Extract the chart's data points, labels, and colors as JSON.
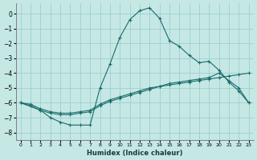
{
  "xlabel": "Humidex (Indice chaleur)",
  "background_color": "#c5e8e5",
  "grid_color": "#9ecece",
  "line_color": "#1a6b6b",
  "xlim": [
    -0.5,
    23.5
  ],
  "ylim": [
    -8.5,
    0.7
  ],
  "yticks": [
    0,
    -1,
    -2,
    -3,
    -4,
    -5,
    -6,
    -7,
    -8
  ],
  "xticks": [
    0,
    1,
    2,
    3,
    4,
    5,
    6,
    7,
    8,
    9,
    10,
    11,
    12,
    13,
    14,
    15,
    16,
    17,
    18,
    19,
    20,
    21,
    22,
    23
  ],
  "line1_x": [
    0,
    1,
    2,
    3,
    4,
    5,
    6,
    7,
    8,
    9,
    10,
    11,
    12,
    13,
    14,
    15,
    16,
    17,
    18,
    19,
    20,
    21,
    22,
    23
  ],
  "line1_y": [
    -6.0,
    -6.2,
    -6.5,
    -7.0,
    -7.3,
    -7.5,
    -7.5,
    -7.5,
    -5.0,
    -3.4,
    -1.6,
    -0.4,
    0.2,
    0.4,
    -0.3,
    -1.8,
    -2.2,
    -2.8,
    -3.3,
    -3.2,
    -3.8,
    -4.6,
    -5.2,
    -6.0
  ],
  "line2_x": [
    0,
    1,
    2,
    3,
    4,
    5,
    6,
    7,
    8,
    9,
    10,
    11,
    12,
    13,
    14,
    15,
    16,
    17,
    18,
    19,
    20,
    21,
    22,
    23
  ],
  "line2_y": [
    -6.0,
    -6.1,
    -6.4,
    -6.6,
    -6.7,
    -6.7,
    -6.6,
    -6.5,
    -6.1,
    -5.8,
    -5.6,
    -5.4,
    -5.2,
    -5.0,
    -4.9,
    -4.7,
    -4.6,
    -4.5,
    -4.4,
    -4.3,
    -4.0,
    -4.5,
    -5.0,
    -6.0
  ],
  "line3_x": [
    0,
    2,
    3,
    4,
    5,
    6,
    7,
    8,
    9,
    10,
    11,
    12,
    13,
    14,
    15,
    16,
    17,
    18,
    19,
    20,
    21,
    22,
    23
  ],
  "line3_y": [
    -6.0,
    -6.5,
    -6.7,
    -6.8,
    -6.8,
    -6.7,
    -6.6,
    -6.2,
    -5.9,
    -5.7,
    -5.5,
    -5.3,
    -5.1,
    -4.9,
    -4.8,
    -4.7,
    -4.6,
    -4.5,
    -4.4,
    -4.3,
    -4.2,
    -4.1,
    -4.0
  ]
}
